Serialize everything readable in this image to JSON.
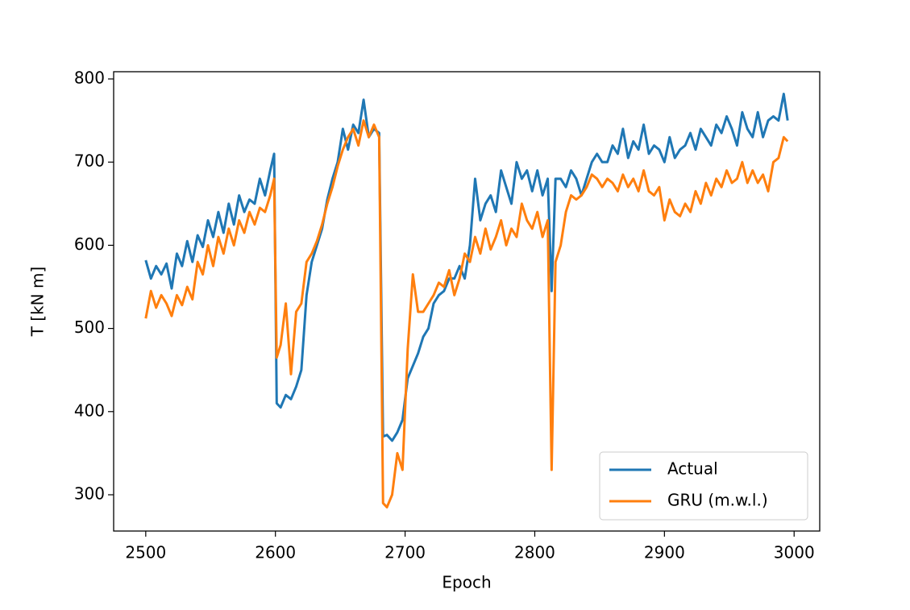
{
  "chart_data": {
    "type": "line",
    "xlabel": "Epoch",
    "ylabel": "T [kN m]",
    "xlim": [
      2475.25,
      3019.75
    ],
    "ylim": [
      256.4,
      808.7
    ],
    "xticks": [
      2500,
      2600,
      2700,
      2800,
      2900,
      3000
    ],
    "yticks": [
      300,
      400,
      500,
      600,
      700,
      800
    ],
    "legend": "lower right",
    "x": [
      2500,
      2504,
      2508,
      2512,
      2516,
      2520,
      2524,
      2528,
      2532,
      2536,
      2540,
      2544,
      2548,
      2552,
      2556,
      2560,
      2564,
      2568,
      2572,
      2576,
      2580,
      2584,
      2588,
      2592,
      2596,
      2599,
      2601,
      2604,
      2608,
      2612,
      2616,
      2620,
      2624,
      2628,
      2632,
      2636,
      2640,
      2644,
      2648,
      2652,
      2656,
      2660,
      2664,
      2668,
      2672,
      2676,
      2680,
      2683,
      2686,
      2690,
      2694,
      2698,
      2702,
      2706,
      2710,
      2714,
      2718,
      2722,
      2726,
      2730,
      2734,
      2738,
      2742,
      2746,
      2750,
      2754,
      2758,
      2762,
      2766,
      2770,
      2774,
      2778,
      2782,
      2786,
      2790,
      2794,
      2798,
      2802,
      2806,
      2810,
      2813,
      2816,
      2820,
      2824,
      2828,
      2832,
      2836,
      2840,
      2844,
      2848,
      2852,
      2856,
      2860,
      2864,
      2868,
      2872,
      2876,
      2880,
      2884,
      2888,
      2892,
      2896,
      2900,
      2904,
      2908,
      2912,
      2916,
      2920,
      2924,
      2928,
      2932,
      2936,
      2940,
      2944,
      2948,
      2952,
      2956,
      2960,
      2964,
      2968,
      2972,
      2976,
      2980,
      2984,
      2988,
      2992,
      2995
    ],
    "series": [
      {
        "name": "Actual",
        "color": "#1f77b4",
        "values": [
          582,
          560,
          575,
          565,
          578,
          548,
          590,
          575,
          605,
          580,
          612,
          598,
          630,
          610,
          640,
          615,
          650,
          625,
          660,
          640,
          655,
          650,
          680,
          660,
          690,
          710,
          410,
          405,
          420,
          415,
          430,
          450,
          540,
          580,
          600,
          620,
          655,
          680,
          700,
          740,
          715,
          745,
          735,
          775,
          730,
          740,
          735,
          370,
          372,
          365,
          375,
          390,
          440,
          455,
          470,
          490,
          500,
          530,
          540,
          545,
          560,
          560,
          575,
          560,
          600,
          680,
          630,
          650,
          660,
          640,
          690,
          670,
          650,
          700,
          680,
          690,
          665,
          690,
          660,
          680,
          545,
          680,
          680,
          670,
          690,
          680,
          660,
          680,
          700,
          710,
          700,
          700,
          720,
          710,
          740,
          705,
          725,
          715,
          745,
          710,
          720,
          715,
          700,
          730,
          705,
          715,
          720,
          735,
          715,
          740,
          730,
          720,
          745,
          735,
          755,
          740,
          720,
          760,
          740,
          730,
          760,
          730,
          750,
          755,
          750,
          782,
          750
        ]
      },
      {
        "name": "GRU (m.w.l.)",
        "color": "#ff7f0e",
        "values": [
          512,
          545,
          525,
          540,
          530,
          515,
          540,
          528,
          550,
          535,
          580,
          565,
          600,
          575,
          610,
          590,
          620,
          600,
          630,
          615,
          640,
          625,
          645,
          640,
          660,
          680,
          465,
          480,
          530,
          445,
          520,
          530,
          580,
          590,
          605,
          625,
          650,
          670,
          695,
          715,
          730,
          740,
          720,
          750,
          730,
          745,
          730,
          290,
          285,
          300,
          350,
          330,
          475,
          565,
          520,
          520,
          530,
          540,
          555,
          550,
          570,
          540,
          560,
          590,
          580,
          610,
          590,
          620,
          595,
          610,
          630,
          600,
          620,
          610,
          650,
          630,
          620,
          640,
          610,
          630,
          330,
          580,
          600,
          640,
          660,
          655,
          660,
          670,
          685,
          680,
          670,
          680,
          675,
          665,
          685,
          670,
          680,
          665,
          690,
          665,
          660,
          670,
          630,
          655,
          640,
          635,
          650,
          640,
          665,
          650,
          675,
          660,
          680,
          670,
          690,
          675,
          680,
          700,
          675,
          690,
          675,
          685,
          665,
          700,
          705,
          730,
          725
        ]
      }
    ]
  }
}
